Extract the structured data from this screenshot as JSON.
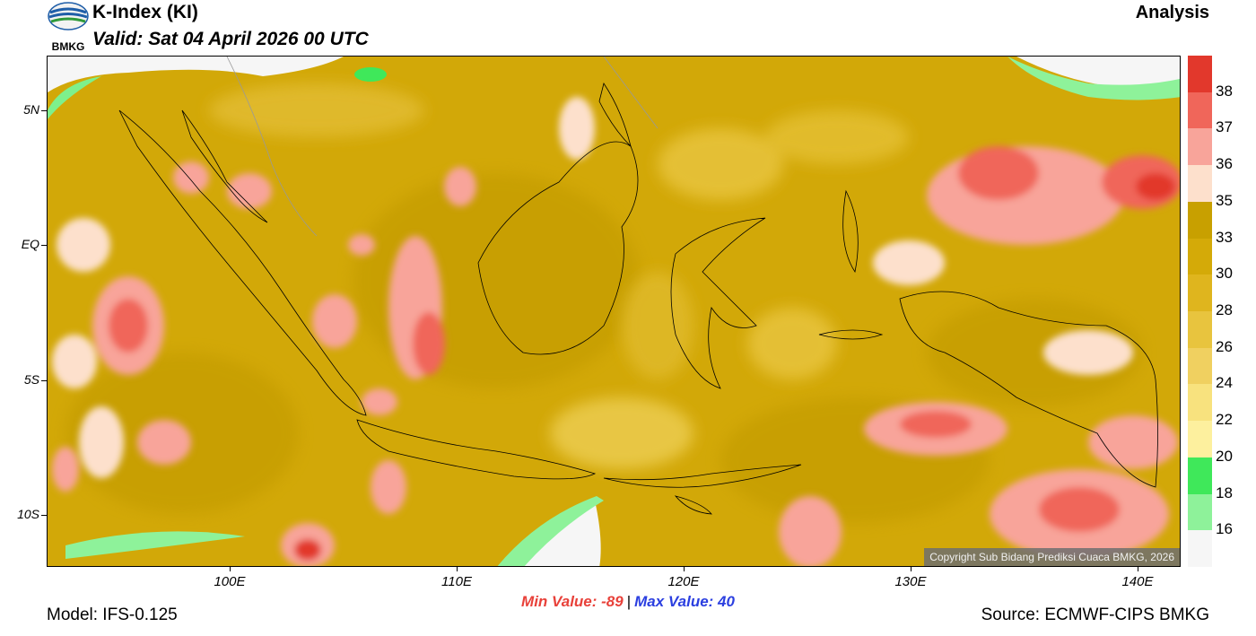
{
  "header": {
    "logo_text": "BMKG",
    "title": "K-Index (KI)",
    "valid": "Valid: Sat 04 April 2026 00 UTC",
    "mode": "Analysis"
  },
  "map": {
    "copyright": "Copyright Sub Bidang Prediksi Cuaca BMKG, 2026",
    "lat_labels": [
      "5N",
      "EQ",
      "5S",
      "10S"
    ],
    "lon_labels": [
      "100E",
      "110E",
      "120E",
      "130E",
      "140E"
    ]
  },
  "stats": {
    "min": "Min Value: -89",
    "separator": "|",
    "max": "Max Value:  40"
  },
  "footer": {
    "model": "Model: IFS-0.125",
    "source": "Source: ECMWF-CIPS BMKG"
  },
  "legend": {
    "labels": [
      "38",
      "37",
      "36",
      "35",
      "33",
      "30",
      "28",
      "26",
      "24",
      "22",
      "20",
      "18",
      "16"
    ],
    "colors": [
      "#e2382c",
      "#f0665a",
      "#f8a49a",
      "#fde0cc",
      "#c8a000",
      "#d4aa08",
      "#dfb51e",
      "#e8c43e",
      "#f0d060",
      "#f8e27e",
      "#fdf09e",
      "#3fe85a",
      "#8ef29a",
      "#f6f6f6"
    ]
  }
}
